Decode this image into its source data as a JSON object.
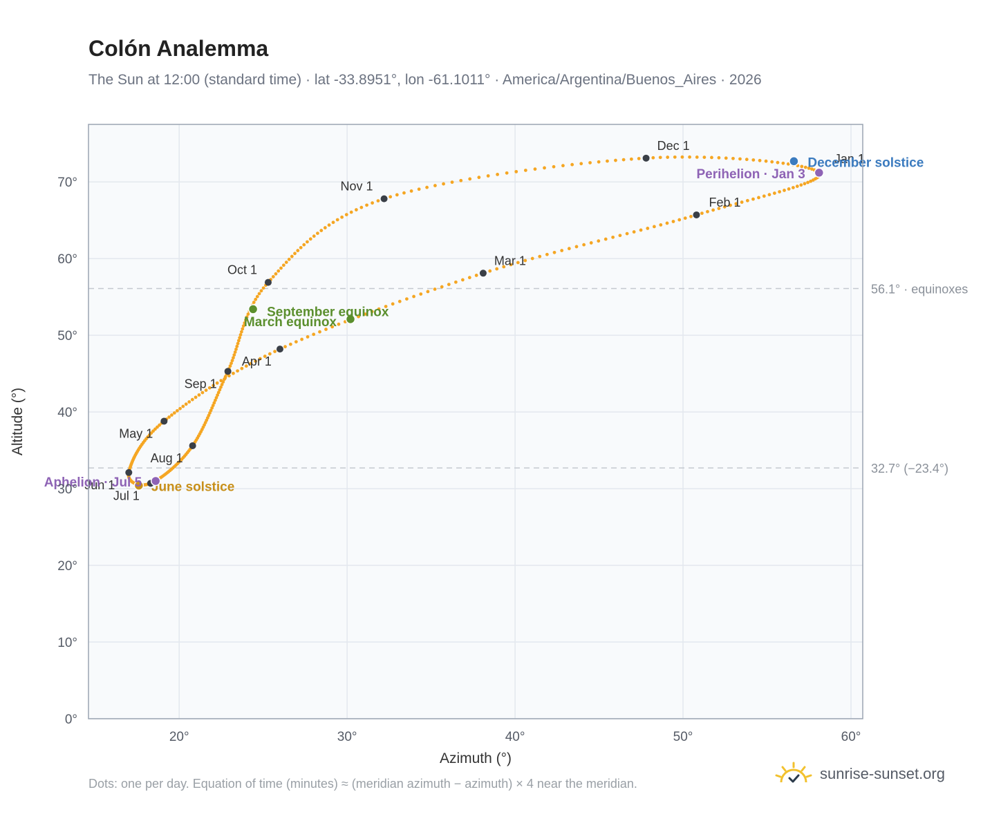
{
  "title": "Colón Analemma",
  "subtitle": "The Sun at 12:00 (standard time) · lat -33.8951°, lon -61.1011° · America/Argentina/Buenos_Aires · 2026",
  "footnote": "Dots: one per day. Equation of time (minutes) ≈ (meridian azimuth − azimuth) × 4 near the meridian.",
  "brand": {
    "text": "sunrise-sunset.org",
    "icon": "sun-logo-icon"
  },
  "colors": {
    "path": "#f5a623",
    "month_dot": "#3a3f47",
    "equinox": "#5b8f2e",
    "december_solstice": "#3b7bbf",
    "june_solstice": "#c8901a",
    "apsis": "#8e63b5",
    "grid": "#e3e8ee",
    "plot_bg": "#f8fafc",
    "frame": "#9aa4b2",
    "ref_line": "#c4c9d0"
  },
  "chart_data": {
    "type": "scatter",
    "xlabel": "Azimuth (°)",
    "ylabel": "Altitude (°)",
    "xlim": [
      14.6,
      60.7
    ],
    "ylim": [
      0,
      77.5
    ],
    "x_ticks": [
      20,
      30,
      40,
      50,
      60
    ],
    "x_tick_labels": [
      "20°",
      "30°",
      "40°",
      "50°",
      "60°"
    ],
    "y_ticks": [
      0,
      10,
      20,
      30,
      40,
      50,
      60,
      70
    ],
    "y_tick_labels": [
      "0°",
      "10°",
      "20°",
      "30°",
      "40°",
      "50°",
      "60°",
      "70°"
    ],
    "grid": true,
    "reference_lines": [
      {
        "y": 56.1,
        "label": "56.1° · equinoxes"
      },
      {
        "y": 32.7,
        "label": "32.7° (−23.4°)"
      }
    ],
    "series": [
      {
        "name": "",
        "anchors": [
          [
            58.1,
            71.2
          ],
          [
            50.8,
            65.7
          ],
          [
            38.1,
            58.1
          ],
          [
            26.0,
            48.2
          ],
          [
            19.1,
            38.8
          ],
          [
            17.0,
            32.1
          ],
          [
            18.3,
            30.7
          ],
          [
            20.8,
            35.6
          ],
          [
            22.9,
            45.3
          ],
          [
            25.3,
            56.9
          ],
          [
            32.2,
            67.8
          ],
          [
            47.8,
            73.1
          ],
          [
            58.1,
            71.2
          ]
        ]
      }
    ],
    "month_markers": [
      {
        "label": "Jan 1",
        "x": 58.1,
        "y": 71.2
      },
      {
        "label": "Feb 1",
        "x": 50.8,
        "y": 65.7
      },
      {
        "label": "Mar 1",
        "x": 38.1,
        "y": 58.1
      },
      {
        "label": "Apr 1",
        "x": 26.0,
        "y": 48.2
      },
      {
        "label": "May 1",
        "x": 19.1,
        "y": 38.8
      },
      {
        "label": "Jun 1",
        "x": 17.0,
        "y": 32.1
      },
      {
        "label": "Jul 1",
        "x": 18.3,
        "y": 30.7
      },
      {
        "label": "Aug 1",
        "x": 20.8,
        "y": 35.6
      },
      {
        "label": "Sep 1",
        "x": 22.9,
        "y": 45.3
      },
      {
        "label": "Oct 1",
        "x": 25.3,
        "y": 56.9
      },
      {
        "label": "Nov 1",
        "x": 32.2,
        "y": 67.8
      },
      {
        "label": "Dec 1",
        "x": 47.8,
        "y": 73.1
      }
    ],
    "events": [
      {
        "label": "March equinox",
        "x": 30.2,
        "y": 52.1,
        "kind": "equinox"
      },
      {
        "label": "September equinox",
        "x": 24.4,
        "y": 53.4,
        "kind": "equinox"
      },
      {
        "label": "June solstice",
        "x": 17.6,
        "y": 30.4,
        "kind": "june_solstice"
      },
      {
        "label": "December solstice",
        "x": 56.6,
        "y": 72.7,
        "kind": "december_solstice"
      },
      {
        "label": "Perihelion · Jan 3",
        "x": 58.1,
        "y": 71.2,
        "kind": "apsis"
      },
      {
        "label": "Aphelion · Jul 5",
        "x": 18.6,
        "y": 31.0,
        "kind": "apsis"
      }
    ]
  }
}
